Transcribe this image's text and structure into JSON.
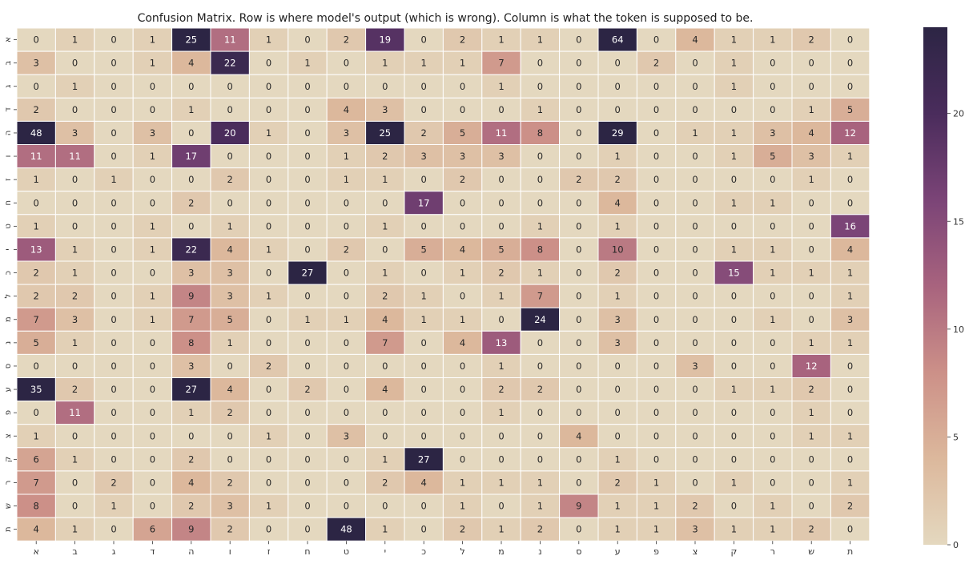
{
  "chart_data": {
    "type": "heatmap",
    "title": "Confusion Matrix. Row is where model's output (which is wrong). Column is what the token is supposed to be.",
    "row_labels": [
      "א",
      "ב",
      "ג",
      "ד",
      "ה",
      "ו",
      "ז",
      "ח",
      "ט",
      "י",
      "כ",
      "ל",
      "מ",
      "נ",
      "ס",
      "ע",
      "פ",
      "צ",
      "ק",
      "ר",
      "ש",
      "ת"
    ],
    "col_labels": [
      "א",
      "ב",
      "ג",
      "ד",
      "ה",
      "ו",
      "ז",
      "ח",
      "ט",
      "י",
      "כ",
      "ל",
      "מ",
      "נ",
      "ס",
      "ע",
      "פ",
      "צ",
      "ק",
      "ר",
      "ש",
      "ת"
    ],
    "values": [
      [
        0,
        1,
        0,
        1,
        25,
        11,
        1,
        0,
        2,
        19,
        0,
        2,
        1,
        1,
        0,
        64,
        0,
        4,
        1,
        1,
        2,
        0
      ],
      [
        3,
        0,
        0,
        1,
        4,
        22,
        0,
        1,
        0,
        1,
        1,
        1,
        7,
        0,
        0,
        0,
        2,
        0,
        1,
        0,
        0,
        0
      ],
      [
        0,
        1,
        0,
        0,
        0,
        0,
        0,
        0,
        0,
        0,
        0,
        0,
        1,
        0,
        0,
        0,
        0,
        0,
        1,
        0,
        0,
        0
      ],
      [
        2,
        0,
        0,
        0,
        1,
        0,
        0,
        0,
        4,
        3,
        0,
        0,
        0,
        1,
        0,
        0,
        0,
        0,
        0,
        0,
        1,
        5
      ],
      [
        48,
        3,
        0,
        3,
        0,
        20,
        1,
        0,
        3,
        25,
        2,
        5,
        11,
        8,
        0,
        29,
        0,
        1,
        1,
        3,
        4,
        12
      ],
      [
        11,
        11,
        0,
        1,
        17,
        0,
        0,
        0,
        1,
        2,
        3,
        3,
        3,
        0,
        0,
        1,
        0,
        0,
        1,
        5,
        3,
        1
      ],
      [
        1,
        0,
        1,
        0,
        0,
        2,
        0,
        0,
        1,
        1,
        0,
        2,
        0,
        0,
        2,
        2,
        0,
        0,
        0,
        0,
        1,
        0
      ],
      [
        0,
        0,
        0,
        0,
        2,
        0,
        0,
        0,
        0,
        0,
        17,
        0,
        0,
        0,
        0,
        4,
        0,
        0,
        1,
        1,
        0,
        0
      ],
      [
        1,
        0,
        0,
        1,
        0,
        1,
        0,
        0,
        0,
        1,
        0,
        0,
        0,
        1,
        0,
        1,
        0,
        0,
        0,
        0,
        0,
        16
      ],
      [
        13,
        1,
        0,
        1,
        22,
        4,
        1,
        0,
        2,
        0,
        5,
        4,
        5,
        8,
        0,
        10,
        0,
        0,
        1,
        1,
        0,
        4
      ],
      [
        2,
        1,
        0,
        0,
        3,
        3,
        0,
        27,
        0,
        1,
        0,
        1,
        2,
        1,
        0,
        2,
        0,
        0,
        15,
        1,
        1,
        1
      ],
      [
        2,
        2,
        0,
        1,
        9,
        3,
        1,
        0,
        0,
        2,
        1,
        0,
        1,
        7,
        0,
        1,
        0,
        0,
        0,
        0,
        0,
        1
      ],
      [
        7,
        3,
        0,
        1,
        7,
        5,
        0,
        1,
        1,
        4,
        1,
        1,
        0,
        24,
        0,
        3,
        0,
        0,
        0,
        1,
        0,
        3
      ],
      [
        5,
        1,
        0,
        0,
        8,
        1,
        0,
        0,
        0,
        7,
        0,
        4,
        13,
        0,
        0,
        3,
        0,
        0,
        0,
        0,
        1,
        1
      ],
      [
        0,
        0,
        0,
        0,
        3,
        0,
        2,
        0,
        0,
        0,
        0,
        0,
        1,
        0,
        0,
        0,
        0,
        3,
        0,
        0,
        12,
        0
      ],
      [
        35,
        2,
        0,
        0,
        27,
        4,
        0,
        2,
        0,
        4,
        0,
        0,
        2,
        2,
        0,
        0,
        0,
        0,
        1,
        1,
        2,
        0
      ],
      [
        0,
        11,
        0,
        0,
        1,
        2,
        0,
        0,
        0,
        0,
        0,
        0,
        1,
        0,
        0,
        0,
        0,
        0,
        0,
        0,
        1,
        0
      ],
      [
        1,
        0,
        0,
        0,
        0,
        0,
        1,
        0,
        3,
        0,
        0,
        0,
        0,
        0,
        4,
        0,
        0,
        0,
        0,
        0,
        1,
        1
      ],
      [
        6,
        1,
        0,
        0,
        2,
        0,
        0,
        0,
        0,
        1,
        27,
        0,
        0,
        0,
        0,
        1,
        0,
        0,
        0,
        0,
        0,
        0
      ],
      [
        7,
        0,
        2,
        0,
        4,
        2,
        0,
        0,
        0,
        2,
        4,
        1,
        1,
        1,
        0,
        2,
        1,
        0,
        1,
        0,
        0,
        1
      ],
      [
        8,
        0,
        1,
        0,
        2,
        3,
        1,
        0,
        0,
        0,
        0,
        1,
        0,
        1,
        9,
        1,
        1,
        2,
        0,
        1,
        0,
        2
      ],
      [
        4,
        1,
        0,
        6,
        9,
        2,
        0,
        0,
        48,
        1,
        0,
        2,
        1,
        2,
        0,
        1,
        1,
        3,
        1,
        1,
        2,
        0
      ]
    ],
    "colorbar": {
      "vmin": 0,
      "vmax": 24,
      "ticks": [
        "0",
        "5",
        "10",
        "15",
        "20"
      ],
      "colormap": [
        "#e4d8bf",
        "#dcb89c",
        "#cc9088",
        "#a8637e",
        "#7b4477",
        "#4a2c5c",
        "#2c2544"
      ]
    },
    "grid": false,
    "legend": "colorbar-right"
  }
}
